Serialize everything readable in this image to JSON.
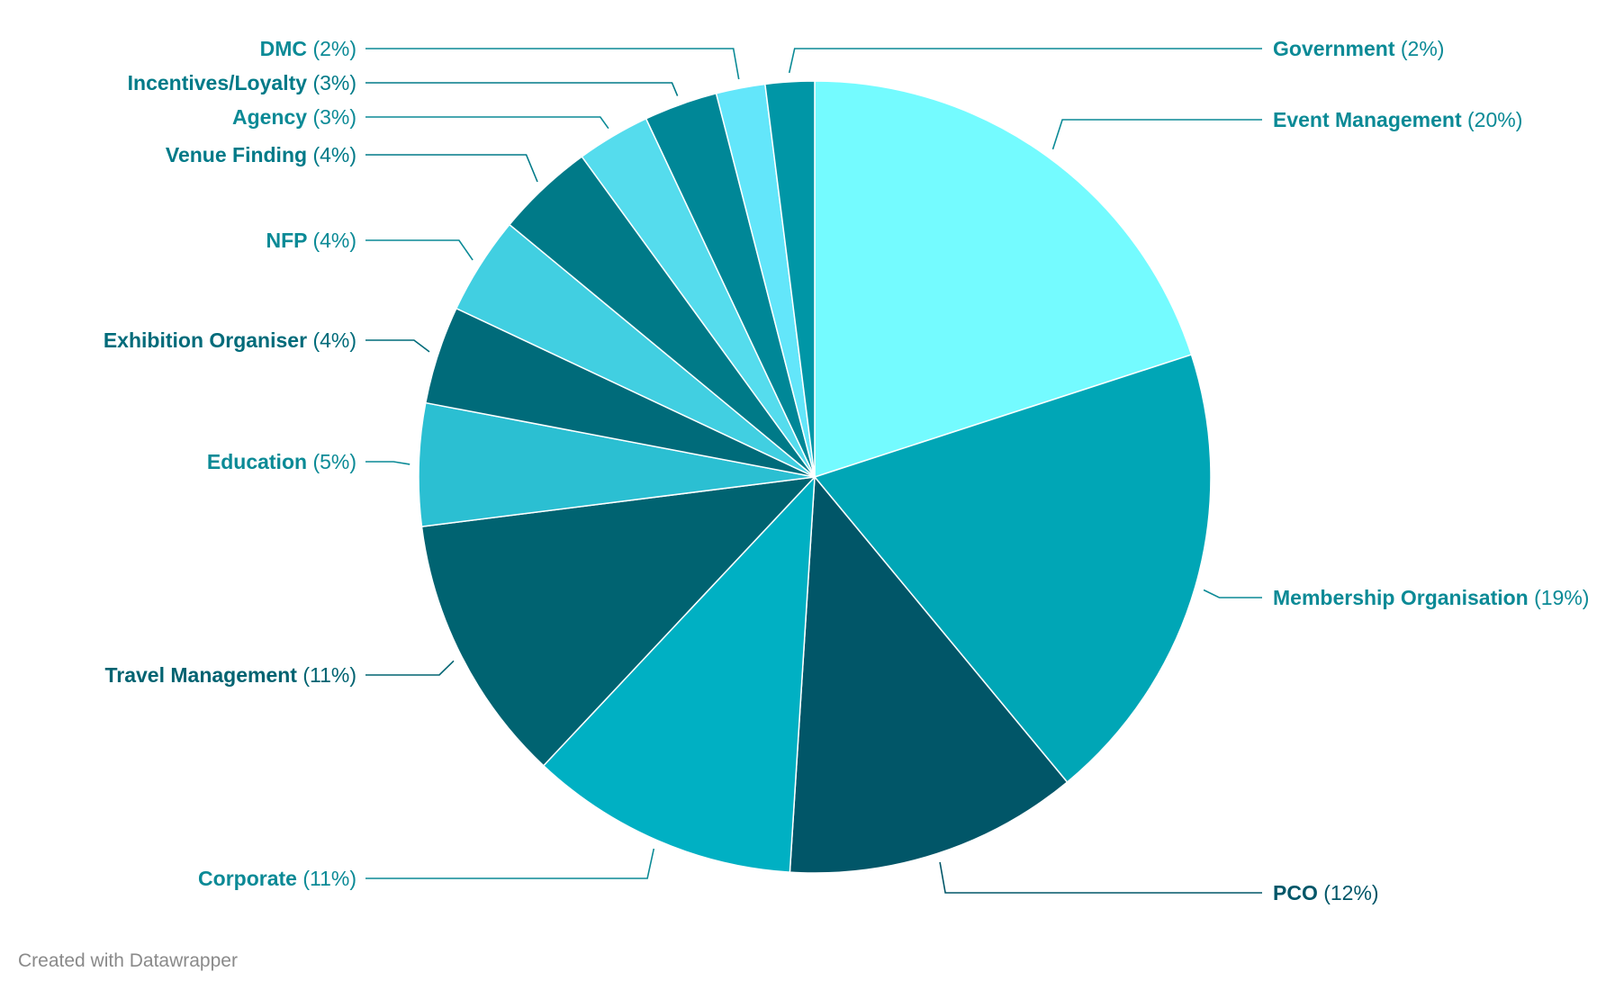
{
  "chart_data": {
    "type": "pie",
    "start": "top",
    "direction": "clockwise",
    "slices": [
      {
        "name": "Event Management",
        "value": 20,
        "label": "(20%)",
        "color": "#74fbff",
        "text_color": "#0b8a96"
      },
      {
        "name": "Membership Organisation",
        "value": 19,
        "label": "(19%)",
        "color": "#00a6b6",
        "text_color": "#0b8a96"
      },
      {
        "name": "PCO",
        "value": 12,
        "label": "(12%)",
        "color": "#015668",
        "text_color": "#015668"
      },
      {
        "name": "Corporate",
        "value": 11,
        "label": "(11%)",
        "color": "#00b0c3",
        "text_color": "#0b8a96"
      },
      {
        "name": "Travel Management",
        "value": 11,
        "label": "(11%)",
        "color": "#006371",
        "text_color": "#006371"
      },
      {
        "name": "Education",
        "value": 5,
        "label": "(5%)",
        "color": "#2bbfd2",
        "text_color": "#0b8a96"
      },
      {
        "name": "Exhibition Organiser",
        "value": 4,
        "label": "(4%)",
        "color": "#006b7a",
        "text_color": "#006b7a"
      },
      {
        "name": "NFP",
        "value": 4,
        "label": "(4%)",
        "color": "#41cfe1",
        "text_color": "#0b8a96"
      },
      {
        "name": "Venue Finding",
        "value": 4,
        "label": "(4%)",
        "color": "#007a88",
        "text_color": "#007a88"
      },
      {
        "name": "Agency",
        "value": 3,
        "label": "(3%)",
        "color": "#55dced",
        "text_color": "#0b8a96"
      },
      {
        "name": "Incentives/Loyalty",
        "value": 3,
        "label": "(3%)",
        "color": "#008797",
        "text_color": "#007a88"
      },
      {
        "name": "DMC",
        "value": 2,
        "label": "(2%)",
        "color": "#63e6fa",
        "text_color": "#0b8a96"
      },
      {
        "name": "Government",
        "value": 2,
        "label": "(2%)",
        "color": "#0096a6",
        "text_color": "#0b8a96"
      }
    ]
  },
  "footer": {
    "credit": "Created with Datawrapper"
  }
}
